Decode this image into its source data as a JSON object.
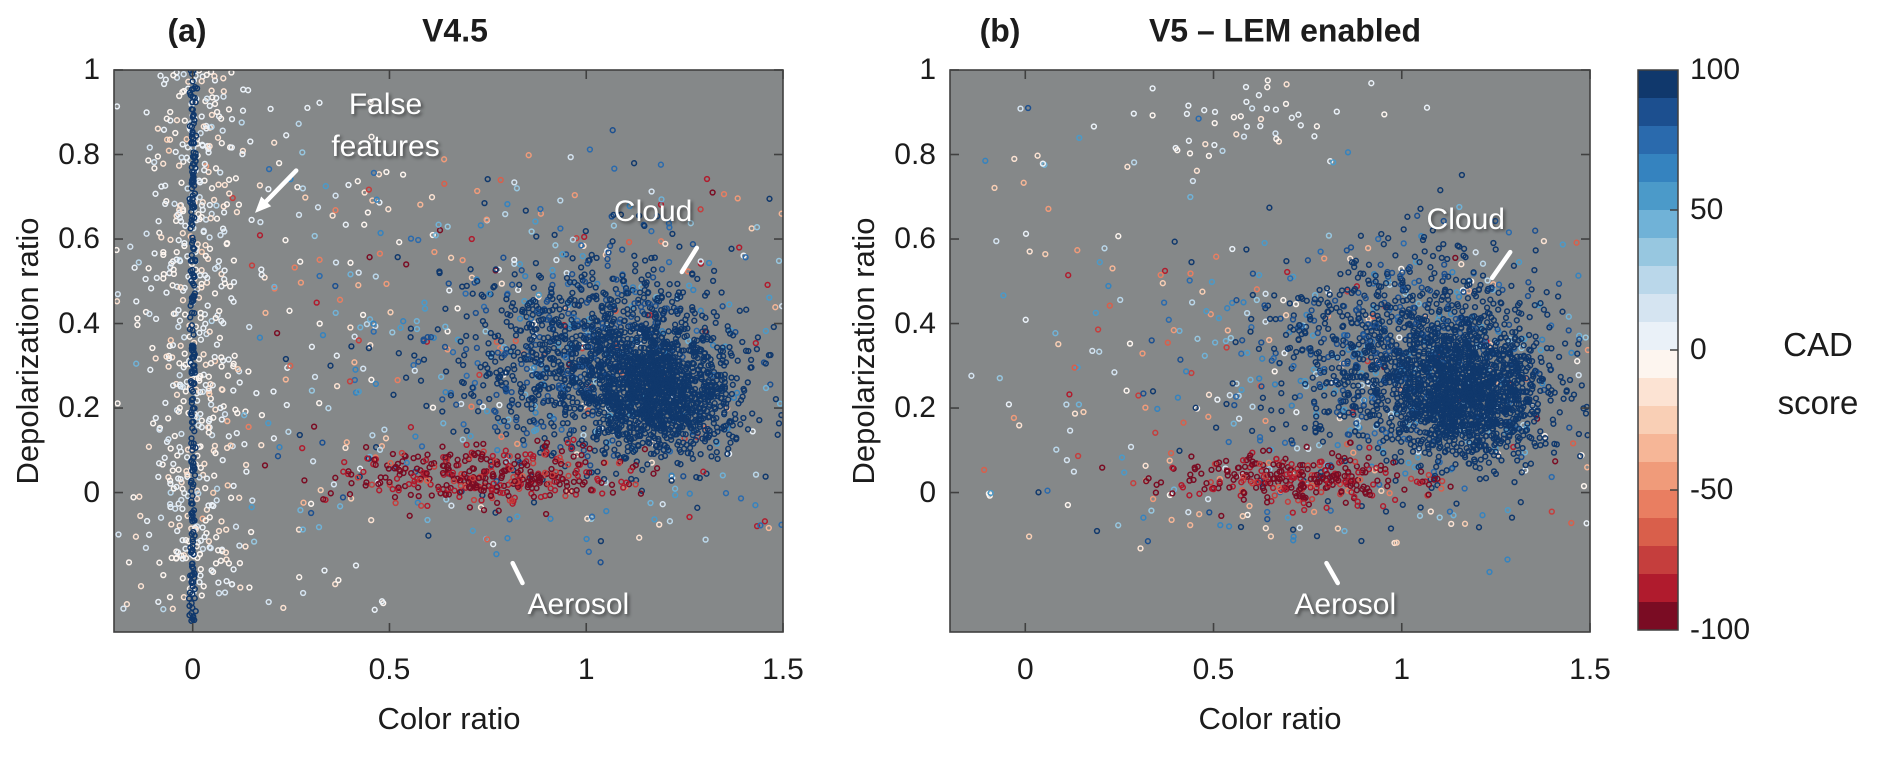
{
  "figure": {
    "background": "#ffffff",
    "plot_background": "#858889",
    "axis_color": "#404040",
    "tick_text_color": "#1c1c1c"
  },
  "colorbar": {
    "label_lines": [
      "CAD",
      "score"
    ],
    "ticks": [
      "100",
      "50",
      "0",
      "-50",
      "-100"
    ],
    "tick_values": [
      100,
      50,
      0,
      -50,
      -100
    ],
    "range": [
      -100,
      100
    ],
    "n_steps": 20,
    "palette_top_to_bottom": [
      "#10386c",
      "#1c4f8f",
      "#2a6aad",
      "#3583bf",
      "#4b9ac9",
      "#70b2d7",
      "#97c7e0",
      "#bad7ea",
      "#d5e4f1",
      "#eaf1f8",
      "#fdf5ef",
      "#fce3d3",
      "#f9cfb5",
      "#f6b697",
      "#f09b7a",
      "#e97e61",
      "#d95f4b",
      "#c53e3d",
      "#b01b2d",
      "#7a0c23"
    ]
  },
  "chart_data": [
    {
      "panel": "a",
      "type": "scatter",
      "corner_label": "(a)",
      "title": "V4.5",
      "xlabel": "Color ratio",
      "ylabel": "Depolarization ratio",
      "xlim": [
        -0.2,
        1.5
      ],
      "ylim": [
        -0.33,
        1.0
      ],
      "xticks": [
        0,
        0.5,
        1,
        1.5
      ],
      "xtick_labels": [
        "0",
        "0.5",
        "1",
        "1.5"
      ],
      "yticks": [
        0,
        0.2,
        0.4,
        0.6,
        0.8,
        1
      ],
      "ytick_labels": [
        "0",
        "0.2",
        "0.4",
        "0.6",
        "0.8",
        "1"
      ],
      "grid": false,
      "marker": "open-circle",
      "annotations": [
        {
          "name": "false-features",
          "text_lines": [
            "False",
            "features"
          ],
          "x": 0.49,
          "y": 0.917,
          "arrow": {
            "x1": 0.263,
            "y1": 0.762,
            "x2": 0.169,
            "y2": 0.672,
            "head": true
          }
        },
        {
          "name": "cloud",
          "text_lines": [
            "Cloud"
          ],
          "x": 1.17,
          "y": 0.664,
          "arrow": {
            "x1": 1.281,
            "y1": 0.579,
            "x2": 1.243,
            "y2": 0.522,
            "head": false
          }
        },
        {
          "name": "aerosol",
          "text_lines": [
            "Aerosol"
          ],
          "x": 0.98,
          "y": -0.266,
          "arrow": {
            "x1": 0.813,
            "y1": -0.167,
            "x2": 0.838,
            "y2": -0.214,
            "head": false
          }
        }
      ],
      "clusters": [
        {
          "name": "left-sparse-near-zero-cad",
          "n": 130,
          "x": {
            "dist": "uniform",
            "min": -0.2,
            "max": 0.5
          },
          "y": {
            "dist": "uniform",
            "min": -0.31,
            "max": 0.98
          },
          "cad": {
            "dist": "normal",
            "mean": 0,
            "sd": 14
          }
        },
        {
          "name": "mixed-background",
          "n": 300,
          "x": {
            "dist": "uniform",
            "min": 0.1,
            "max": 1.5
          },
          "y": {
            "dist": "uniform",
            "min": -0.12,
            "max": 0.8
          },
          "cad": {
            "dist": "uniform",
            "min": -100,
            "max": 100
          }
        },
        {
          "name": "cloud-fringe",
          "n": 320,
          "x": {
            "dist": "normal",
            "mean": 0.95,
            "sd": 0.27
          },
          "y": {
            "dist": "normal",
            "mean": 0.3,
            "sd": 0.18
          },
          "cad": {
            "dist": "normal",
            "mean": 75,
            "sd": 30
          }
        },
        {
          "name": "cloud-main",
          "n": 850,
          "x": {
            "dist": "normal",
            "mean": 1.02,
            "sd": 0.16
          },
          "y": {
            "dist": "normal",
            "mean": 0.34,
            "sd": 0.11
          },
          "cad": {
            "dist": "normal",
            "mean": 97,
            "sd": 7
          }
        },
        {
          "name": "cloud-core",
          "n": 1350,
          "x": {
            "dist": "normal",
            "mean": 1.18,
            "sd": 0.1
          },
          "y": {
            "dist": "normal",
            "mean": 0.245,
            "sd": 0.075
          },
          "cad": {
            "dist": "normal",
            "mean": 99,
            "sd": 3
          }
        },
        {
          "name": "aerosol-band",
          "n": 380,
          "x": {
            "dist": "normal",
            "mean": 0.75,
            "sd": 0.18
          },
          "y": {
            "dist": "normal",
            "mean": 0.04,
            "sd": 0.035
          },
          "cad": {
            "dist": "normal",
            "mean": -93,
            "sd": 12
          }
        },
        {
          "name": "false-features-column",
          "n": 520,
          "x": {
            "dist": "normal",
            "mean": 0.01,
            "sd": 0.06
          },
          "y": {
            "dist": "uniform",
            "min": -0.25,
            "max": 1.0
          },
          "cad": {
            "dist": "normal",
            "mean": 0,
            "sd": 10
          }
        },
        {
          "name": "false-features-line",
          "n": 230,
          "x": {
            "dist": "normal",
            "mean": 0.0,
            "sd": 0.0035
          },
          "y": {
            "dist": "uniform",
            "min": -0.31,
            "max": 1.0
          },
          "cad": {
            "dist": "normal",
            "mean": 100,
            "sd": 2
          }
        }
      ]
    },
    {
      "panel": "b",
      "type": "scatter",
      "corner_label": "(b)",
      "title": "V5 – LEM enabled",
      "xlabel": "Color ratio",
      "ylabel": "Depolarization ratio",
      "xlim": [
        -0.2,
        1.5
      ],
      "ylim": [
        -0.33,
        1.0
      ],
      "xticks": [
        0,
        0.5,
        1,
        1.5
      ],
      "xtick_labels": [
        "0",
        "0.5",
        "1",
        "1.5"
      ],
      "yticks": [
        0,
        0.2,
        0.4,
        0.6,
        0.8,
        1
      ],
      "ytick_labels": [
        "0",
        "0.2",
        "0.4",
        "0.6",
        "0.8",
        "1"
      ],
      "grid": false,
      "marker": "open-circle",
      "annotations": [
        {
          "name": "cloud",
          "text_lines": [
            "Cloud"
          ],
          "x": 1.17,
          "y": 0.645,
          "arrow": {
            "x1": 1.288,
            "y1": 0.569,
            "x2": 1.24,
            "y2": 0.508,
            "head": false
          }
        },
        {
          "name": "aerosol",
          "text_lines": [
            "Aerosol"
          ],
          "x": 0.85,
          "y": -0.266,
          "arrow": {
            "x1": 0.8,
            "y1": -0.167,
            "x2": 0.83,
            "y2": -0.214,
            "head": false
          }
        }
      ],
      "clusters": [
        {
          "name": "top-white-sparse",
          "n": 45,
          "x": {
            "dist": "normal",
            "mean": 0.62,
            "sd": 0.18
          },
          "y": {
            "dist": "normal",
            "mean": 0.88,
            "sd": 0.05
          },
          "cad": {
            "dist": "normal",
            "mean": 0,
            "sd": 8
          }
        },
        {
          "name": "left-sparse",
          "n": 70,
          "x": {
            "dist": "uniform",
            "min": -0.15,
            "max": 0.55
          },
          "y": {
            "dist": "uniform",
            "min": -0.15,
            "max": 0.95
          },
          "cad": {
            "dist": "normal",
            "mean": 5,
            "sd": 35
          }
        },
        {
          "name": "mixed-background",
          "n": 220,
          "x": {
            "dist": "uniform",
            "min": 0.1,
            "max": 1.5
          },
          "y": {
            "dist": "uniform",
            "min": -0.12,
            "max": 0.6
          },
          "cad": {
            "dist": "uniform",
            "min": -100,
            "max": 100
          }
        },
        {
          "name": "cloud-fringe",
          "n": 300,
          "x": {
            "dist": "normal",
            "mean": 0.95,
            "sd": 0.27
          },
          "y": {
            "dist": "normal",
            "mean": 0.28,
            "sd": 0.17
          },
          "cad": {
            "dist": "normal",
            "mean": 78,
            "sd": 28
          }
        },
        {
          "name": "cloud-main",
          "n": 850,
          "x": {
            "dist": "normal",
            "mean": 1.0,
            "sd": 0.17
          },
          "y": {
            "dist": "normal",
            "mean": 0.33,
            "sd": 0.12
          },
          "cad": {
            "dist": "normal",
            "mean": 97,
            "sd": 7
          }
        },
        {
          "name": "cloud-core",
          "n": 1400,
          "x": {
            "dist": "normal",
            "mean": 1.17,
            "sd": 0.105
          },
          "y": {
            "dist": "normal",
            "mean": 0.235,
            "sd": 0.08
          },
          "cad": {
            "dist": "normal",
            "mean": 99,
            "sd": 3
          }
        },
        {
          "name": "aerosol-band",
          "n": 300,
          "x": {
            "dist": "normal",
            "mean": 0.72,
            "sd": 0.16
          },
          "y": {
            "dist": "normal",
            "mean": 0.035,
            "sd": 0.03
          },
          "cad": {
            "dist": "normal",
            "mean": -93,
            "sd": 12
          }
        }
      ]
    }
  ]
}
